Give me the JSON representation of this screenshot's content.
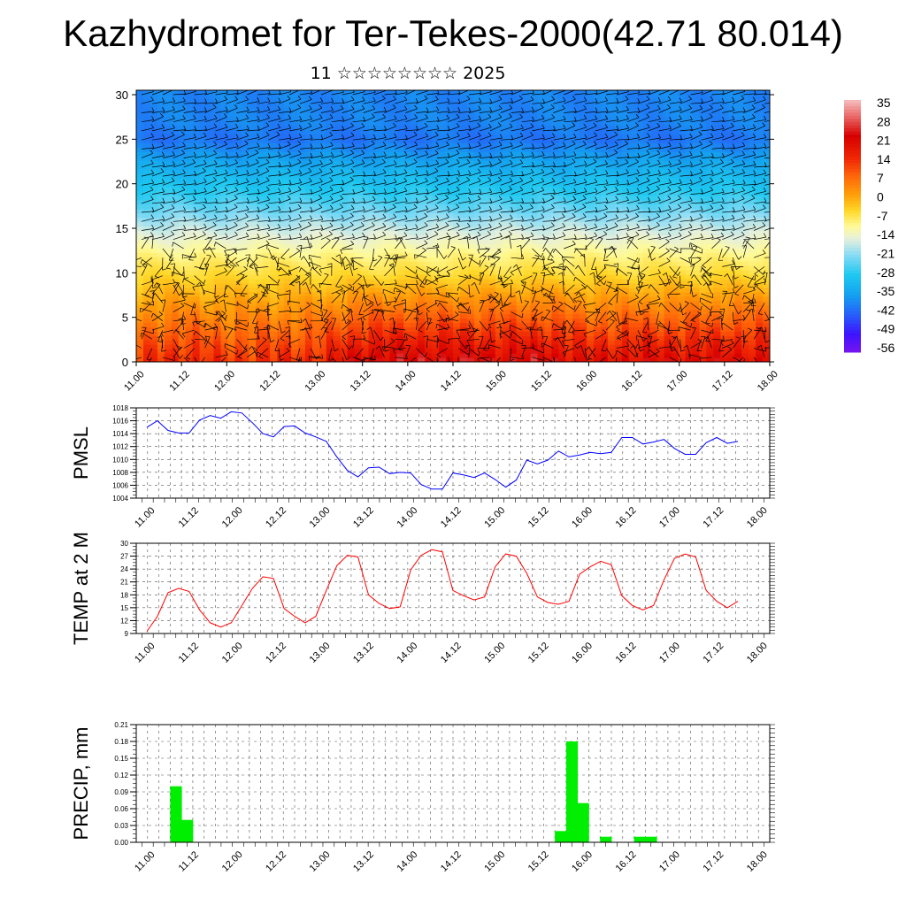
{
  "header": {
    "title": "Kazhydromet for Ter-Tekes-2000(42.71 80.014)",
    "subtitle": "11 ☆☆☆☆☆☆☆☆ 2025"
  },
  "colors": {
    "pmsl_line": "#0000ff",
    "temp_line": "#ff0000",
    "precip_bar": "#00ee00",
    "grid": "#444444"
  },
  "chart_data": [
    {
      "type": "heatmap",
      "title": "",
      "x_ticks": [
        "11.00",
        "11.12",
        "12.00",
        "12.12",
        "13.00",
        "13.12",
        "14.00",
        "14.12",
        "15.00",
        "15.12",
        "16.00",
        "16.12",
        "17.00",
        "17.12",
        "18.00"
      ],
      "y_ticks": [
        "0",
        "5",
        "10",
        "15",
        "20",
        "25",
        "30"
      ],
      "ylim": [
        0,
        30.5
      ],
      "colorbar": {
        "labels": [
          "35",
          "28",
          "21",
          "14",
          "7",
          "0",
          "-7",
          "-14",
          "-21",
          "-28",
          "-35",
          "-42",
          "-49",
          "-56"
        ],
        "range": [
          -60,
          38
        ]
      },
      "temperature_profile": {
        "levels": [
          0,
          3,
          6,
          9,
          12,
          15,
          17,
          19,
          21,
          23,
          25,
          27,
          30.5
        ],
        "surface_by_time": [
          14,
          17,
          14,
          15,
          16,
          24,
          25,
          25,
          24,
          25,
          20,
          22,
          22,
          22,
          22
        ],
        "lapse": [
          0,
          -6,
          -12,
          -18,
          -24,
          -32,
          -38,
          -43,
          -47,
          -52,
          -57,
          -55,
          -55
        ]
      },
      "overlay": "wind barbs"
    },
    {
      "type": "line",
      "ylabel": "PMSL",
      "x_ticks": [
        "11.00",
        "11.12",
        "12.00",
        "12.12",
        "13.00",
        "13.12",
        "14.00",
        "14.12",
        "15.00",
        "15.12",
        "16.00",
        "16.12",
        "17.00",
        "17.12",
        "18.00"
      ],
      "y_ticks": [
        "1004",
        "1006",
        "1008",
        "1010",
        "1012",
        "1014",
        "1016",
        "1018"
      ],
      "ylim": [
        1004,
        1018
      ],
      "values": [
        1015.0,
        1016.0,
        1014.5,
        1014.1,
        1014.1,
        1016.1,
        1016.8,
        1016.4,
        1017.4,
        1017.2,
        1015.7,
        1014.0,
        1013.5,
        1015.1,
        1015.2,
        1014.1,
        1013.5,
        1012.8,
        1010.4,
        1008.3,
        1007.3,
        1008.7,
        1008.8,
        1007.8,
        1008.0,
        1007.9,
        1006.1,
        1005.4,
        1005.4,
        1007.9,
        1007.6,
        1007.2,
        1007.9,
        1006.9,
        1005.7,
        1006.8,
        1009.9,
        1009.3,
        1009.9,
        1011.3,
        1010.4,
        1010.7,
        1011.1,
        1010.9,
        1011.1,
        1013.4,
        1013.4,
        1012.4,
        1012.7,
        1013.1,
        1011.7,
        1010.8,
        1010.8,
        1012.6,
        1013.4,
        1012.5,
        1012.8
      ]
    },
    {
      "type": "line",
      "ylabel": "TEMP at 2 M",
      "x_ticks": [
        "11.00",
        "11.12",
        "12.00",
        "12.12",
        "13.00",
        "13.12",
        "14.00",
        "14.12",
        "15.00",
        "15.12",
        "16.00",
        "16.12",
        "17.00",
        "17.12",
        "18.00"
      ],
      "y_ticks": [
        "9",
        "12",
        "15",
        "18",
        "21",
        "24",
        "27",
        "30"
      ],
      "ylim": [
        9,
        30
      ],
      "values": [
        9.5,
        13.0,
        18.5,
        19.5,
        18.8,
        14.5,
        11.5,
        10.5,
        11.5,
        15.5,
        19.5,
        22.2,
        21.8,
        14.8,
        13.0,
        11.5,
        13.0,
        19.0,
        24.8,
        27.2,
        26.8,
        18.0,
        16.0,
        14.8,
        15.2,
        23.8,
        27.2,
        28.5,
        28.0,
        19.0,
        17.8,
        16.8,
        17.5,
        24.5,
        27.5,
        27.0,
        23.0,
        17.5,
        16.2,
        15.8,
        16.5,
        22.8,
        24.5,
        25.8,
        25.0,
        17.8,
        15.5,
        14.5,
        15.5,
        21.5,
        26.5,
        27.5,
        26.8,
        19.0,
        16.5,
        15.0,
        16.5
      ]
    },
    {
      "type": "bar",
      "ylabel": "PRECIP, mm",
      "x_ticks": [
        "11.00",
        "11.12",
        "12.00",
        "12.12",
        "13.00",
        "13.12",
        "14.00",
        "14.12",
        "15.00",
        "15.12",
        "16.00",
        "16.12",
        "17.00",
        "17.12",
        "18.00"
      ],
      "y_ticks": [
        "0.00",
        "0.03",
        "0.06",
        "0.09",
        "0.12",
        "0.15",
        "0.18",
        "0.21"
      ],
      "ylim": [
        0,
        0.21
      ],
      "values": [
        0,
        0,
        0,
        0.1,
        0.04,
        0,
        0,
        0,
        0,
        0,
        0,
        0,
        0,
        0,
        0,
        0,
        0,
        0,
        0,
        0,
        0,
        0,
        0,
        0,
        0,
        0,
        0,
        0,
        0,
        0,
        0,
        0,
        0,
        0,
        0,
        0,
        0,
        0.02,
        0.18,
        0.07,
        0,
        0.01,
        0,
        0,
        0.01,
        0.01,
        0,
        0,
        0,
        0,
        0,
        0,
        0,
        0,
        0,
        0
      ]
    }
  ]
}
